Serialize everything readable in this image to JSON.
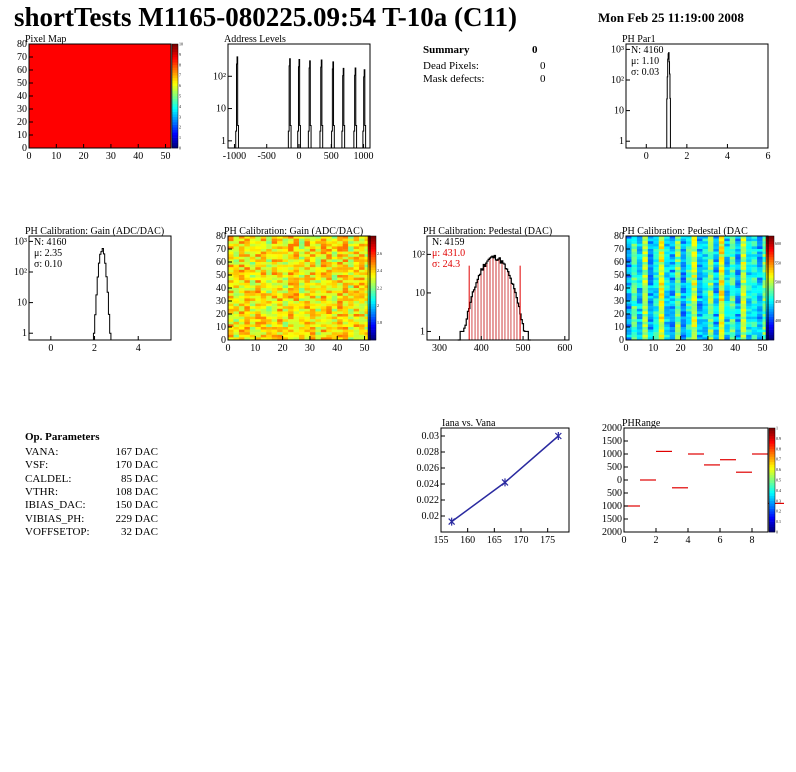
{
  "header": {
    "title": "shortTests M1165-080225.09:54 T-10a (C11)",
    "date": "Mon Feb 25 11:19:00 2008"
  },
  "summary": {
    "title": "Summary",
    "value": "0",
    "rows": [
      {
        "label": "Dead Pixels:",
        "value": "0"
      },
      {
        "label": "Mask defects:",
        "value": "0"
      }
    ]
  },
  "op_params": {
    "title": "Op. Parameters",
    "rows": [
      {
        "name": "VANA:",
        "value": "167 DAC"
      },
      {
        "name": "VSF:",
        "value": "170 DAC"
      },
      {
        "name": "CALDEL:",
        "value": "85 DAC"
      },
      {
        "name": "VTHR:",
        "value": "108 DAC"
      },
      {
        "name": "IBIAS_DAC:",
        "value": "150 DAC"
      },
      {
        "name": "VIBIAS_PH:",
        "value": "229 DAC"
      },
      {
        "name": "VOFFSETOP:",
        "value": "32 DAC"
      }
    ]
  },
  "chart_data": [
    {
      "id": "pixelmap",
      "type": "heatmap",
      "title": "Pixel Map",
      "xlim": [
        0,
        52
      ],
      "ylim": [
        0,
        80
      ],
      "xticks": [
        0,
        10,
        20,
        30,
        40,
        50
      ],
      "yticks": [
        0,
        10,
        20,
        30,
        40,
        50,
        60,
        70,
        80
      ],
      "fill_value": 10,
      "zlim": [
        0,
        10
      ],
      "zticks": [
        "0",
        "1",
        "2",
        "3",
        "4",
        "5",
        "6",
        "7",
        "8",
        "9",
        "10"
      ]
    },
    {
      "id": "addr",
      "type": "bar",
      "title": "Address Levels",
      "yscale": "log",
      "xlim": [
        -1100,
        1100
      ],
      "ylim": [
        0.6,
        1000
      ],
      "xticks": [
        -1000,
        -500,
        0,
        500,
        1000
      ],
      "xtick_labels": [
        "-1000",
        "-500",
        "0",
        "500",
        "1000"
      ],
      "yticks": [
        1,
        10,
        100
      ],
      "ytick_labels": [
        "1",
        "10",
        "10²"
      ],
      "peaks": [
        [
          -960,
          400
        ],
        [
          -145,
          350
        ],
        [
          0,
          330
        ],
        [
          165,
          300
        ],
        [
          345,
          320
        ],
        [
          525,
          280
        ],
        [
          685,
          175
        ],
        [
          870,
          180
        ],
        [
          1010,
          160
        ]
      ]
    },
    {
      "id": "phpar1",
      "type": "bar",
      "title": "PH Par1",
      "yscale": "log",
      "xlim": [
        -1,
        6
      ],
      "ylim": [
        0.6,
        1500
      ],
      "xticks": [
        0,
        2,
        4,
        6
      ],
      "xtick_labels": [
        "0",
        "2",
        "4",
        "6"
      ],
      "yticks": [
        1,
        10,
        100,
        1000
      ],
      "ytick_labels": [
        "1",
        "10",
        "10²",
        "10³"
      ],
      "stats": [
        "N: 4160",
        "μ: 1.10",
        "σ: 0.03"
      ],
      "mean": 1.1,
      "sigma": 0.03,
      "peak": 800
    },
    {
      "id": "gain1",
      "type": "bar",
      "title": "PH Calibration: Gain (ADC/DAC)",
      "yscale": "log",
      "xlim": [
        -1,
        5.5
      ],
      "ylim": [
        0.6,
        1500
      ],
      "xticks": [
        0,
        2,
        4
      ],
      "xtick_labels": [
        "0",
        "2",
        "4"
      ],
      "yticks": [
        1,
        10,
        100,
        1000
      ],
      "ytick_labels": [
        "1",
        "10",
        "10²",
        "10³"
      ],
      "stats": [
        "N: 4160",
        "μ: 2.35",
        "σ: 0.10"
      ],
      "mean": 2.35,
      "sigma": 0.1,
      "peak": 550
    },
    {
      "id": "gain2",
      "type": "heatmap",
      "title": "PH Calibration: Gain (ADC/DAC)",
      "xlim": [
        0,
        52
      ],
      "ylim": [
        0,
        80
      ],
      "xticks": [
        0,
        10,
        20,
        30,
        40,
        50
      ],
      "yticks": [
        0,
        10,
        20,
        30,
        40,
        50,
        60,
        70,
        80
      ],
      "zlim": [
        1.6,
        2.8
      ],
      "zticks": [
        "1.8",
        "2",
        "2.2",
        "2.4",
        "2.6"
      ]
    },
    {
      "id": "ped1",
      "type": "bar",
      "title": "PH Calibration: Pedestal (DAC)",
      "yscale": "log",
      "xlim": [
        270,
        610
      ],
      "ylim": [
        0.6,
        300
      ],
      "xticks": [
        300,
        400,
        500,
        600
      ],
      "xtick_labels": [
        "300",
        "400",
        "500",
        "600"
      ],
      "yticks": [
        1,
        10,
        100
      ],
      "ytick_labels": [
        "1",
        "10",
        "10²"
      ],
      "stats": [
        "N: 4159",
        "μ: 431.0",
        "σ: 24.3"
      ],
      "mean": 431.0,
      "sigma": 24.3,
      "peak": 85,
      "markers": [
        371,
        493
      ]
    },
    {
      "id": "ped2",
      "type": "heatmap",
      "title": "PH Calibration: Pedestal (DAC",
      "xlim": [
        0,
        52
      ],
      "ylim": [
        0,
        80
      ],
      "xticks": [
        0,
        10,
        20,
        30,
        40,
        50
      ],
      "yticks": [
        0,
        10,
        20,
        30,
        40,
        50,
        60,
        70,
        80
      ],
      "zlim": [
        350,
        620
      ],
      "zticks": [
        "400",
        "450",
        "500",
        "550",
        "600"
      ]
    },
    {
      "id": "iana",
      "type": "line",
      "title": "Iana vs. Vana",
      "x": [
        157,
        167,
        177
      ],
      "y": [
        0.0193,
        0.0242,
        0.03
      ],
      "xlim": [
        155,
        179
      ],
      "ylim": [
        0.018,
        0.031
      ],
      "xticks": [
        155,
        160,
        165,
        170,
        175
      ],
      "yticks": [
        0.02,
        0.022,
        0.024,
        0.026,
        0.028,
        0.03
      ],
      "ytick_labels": [
        "0.02",
        "0.022",
        "0.024",
        "0.026",
        "0.028",
        "0.03"
      ]
    },
    {
      "id": "phrange",
      "type": "scatter",
      "title": "PHRange",
      "xlim": [
        0,
        9
      ],
      "ylim": [
        -2000,
        2000
      ],
      "xticks": [
        0,
        2,
        4,
        6,
        8
      ],
      "yticks": [
        -2000,
        -1500,
        -1000,
        -500,
        0,
        500,
        1000,
        1500,
        2000
      ],
      "ytick_labels": [
        "2000",
        "1500",
        "1000",
        "500",
        "0",
        "500",
        "1000",
        "1500",
        "2000"
      ],
      "values": [
        -1000,
        0,
        1100,
        -300,
        1000,
        580,
        780,
        300,
        1000,
        -900
      ],
      "zlim": [
        0,
        1
      ],
      "zticks": [
        "0",
        "0.1",
        "0.2",
        "0.3",
        "0.4",
        "0.5",
        "0.6",
        "0.7",
        "0.8",
        "0.9",
        "1"
      ]
    }
  ]
}
